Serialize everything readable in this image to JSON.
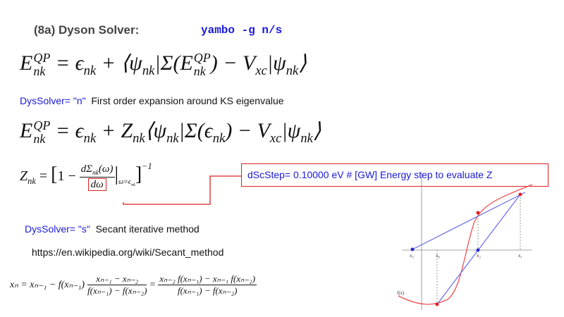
{
  "header": {
    "title": "(8a) Dyson Solver:",
    "command": "yambo -g n/s"
  },
  "eq1": [
    "E",
    "QP",
    "nk",
    " = ϵ",
    "nk",
    " + ⟨ψ",
    "nk",
    "|Σ(E",
    "QP",
    "nk",
    ") − V",
    "xc",
    "|ψ",
    "nk",
    "⟩"
  ],
  "line1": {
    "label": "DysSolver= \"n\"",
    "text": "First order expansion around KS eigenvalue"
  },
  "eq2": [
    "E",
    "QP",
    "nk",
    " = ϵ",
    "nk",
    " + Z",
    "nk",
    "⟨ψ",
    "nk",
    "|Σ(ϵ",
    "nk",
    ") − V",
    "xc",
    "|ψ",
    "nk",
    "⟩"
  ],
  "eq3": [
    "Z",
    "nk",
    " = ",
    "[",
    "1 − ",
    "dΣ",
    "nk",
    "(ω)",
    "dω",
    "|",
    "ω=ϵ",
    "nk",
    "]",
    "−1"
  ],
  "note": "dScStep=  0.10000   eV    # [GW] Energy step to evaluate Z",
  "line2": {
    "label": "DysSolver= \"s\"",
    "text": "Secant iterative method"
  },
  "url": "https://en.wikipedia.org/wiki/Secant_method",
  "eq4": [
    "xₙ = xₙ₋₁ − f(xₙ₋₁)",
    "xₙ₋₁ − xₙ₋₂",
    "f(xₙ₋₁) − f(xₙ₋₂)",
    "=",
    "xₙ₋₂ f(xₙ₋₁) − xₙ₋₁ f(xₙ₋₂)",
    "f(xₙ₋₁) − f(xₙ₋₂)"
  ],
  "graph": {
    "labels": [
      "x₃",
      "x₀",
      "x₂",
      "x₁",
      "f(x)"
    ]
  }
}
